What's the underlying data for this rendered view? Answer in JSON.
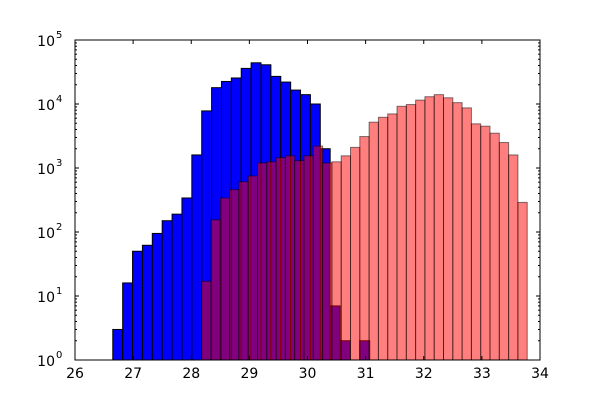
{
  "chart_data": {
    "type": "bar",
    "subtype": "overlapping-histogram",
    "title": "",
    "xlabel": "",
    "ylabel": "",
    "xlim": [
      26,
      34
    ],
    "ylim": [
      1,
      100000
    ],
    "yscale": "log",
    "grid": false,
    "legend": "none",
    "x_ticks": [
      26,
      27,
      28,
      29,
      30,
      31,
      32,
      33,
      34
    ],
    "x_tick_labels": [
      "26",
      "27",
      "28",
      "29",
      "30",
      "31",
      "32",
      "33",
      "34"
    ],
    "y_ticks": [
      {
        "value": 1,
        "base": "10",
        "exp": "0"
      },
      {
        "value": 10,
        "base": "10",
        "exp": "1"
      },
      {
        "value": 100,
        "base": "10",
        "exp": "2"
      },
      {
        "value": 1000,
        "base": "10",
        "exp": "3"
      },
      {
        "value": 10000,
        "base": "10",
        "exp": "4"
      },
      {
        "value": 100000,
        "base": "10",
        "exp": "5"
      }
    ],
    "series": [
      {
        "color": "#0000ff",
        "opacity": 1.0,
        "bins": [
          {
            "x0": 26.65,
            "x1": 26.82,
            "y": 3
          },
          {
            "x0": 26.82,
            "x1": 26.99,
            "y": 16
          },
          {
            "x0": 26.99,
            "x1": 27.16,
            "y": 50
          },
          {
            "x0": 27.16,
            "x1": 27.33,
            "y": 62
          },
          {
            "x0": 27.33,
            "x1": 27.5,
            "y": 95
          },
          {
            "x0": 27.5,
            "x1": 27.67,
            "y": 150
          },
          {
            "x0": 27.67,
            "x1": 27.84,
            "y": 190
          },
          {
            "x0": 27.84,
            "x1": 28.01,
            "y": 340
          },
          {
            "x0": 28.01,
            "x1": 28.18,
            "y": 1600
          },
          {
            "x0": 28.18,
            "x1": 28.35,
            "y": 7800
          },
          {
            "x0": 28.35,
            "x1": 28.52,
            "y": 18000
          },
          {
            "x0": 28.52,
            "x1": 28.69,
            "y": 22500
          },
          {
            "x0": 28.69,
            "x1": 28.86,
            "y": 25500
          },
          {
            "x0": 28.86,
            "x1": 29.03,
            "y": 36000
          },
          {
            "x0": 29.03,
            "x1": 29.2,
            "y": 44000
          },
          {
            "x0": 29.2,
            "x1": 29.37,
            "y": 41000
          },
          {
            "x0": 29.37,
            "x1": 29.54,
            "y": 27000
          },
          {
            "x0": 29.54,
            "x1": 29.71,
            "y": 22000
          },
          {
            "x0": 29.71,
            "x1": 29.88,
            "y": 16500
          },
          {
            "x0": 29.88,
            "x1": 30.05,
            "y": 14000
          },
          {
            "x0": 30.05,
            "x1": 30.22,
            "y": 10000
          },
          {
            "x0": 30.22,
            "x1": 30.39,
            "y": 2000
          },
          {
            "x0": 30.39,
            "x1": 30.56,
            "y": 7
          },
          {
            "x0": 30.56,
            "x1": 30.73,
            "y": 2
          },
          {
            "x0": 30.73,
            "x1": 30.9,
            "y": 1
          },
          {
            "x0": 30.9,
            "x1": 31.07,
            "y": 2
          }
        ]
      },
      {
        "color": "#ff0000",
        "opacity": 0.5,
        "bins": [
          {
            "x0": 28.18,
            "x1": 28.34,
            "y": 17
          },
          {
            "x0": 28.34,
            "x1": 28.5,
            "y": 155
          },
          {
            "x0": 28.5,
            "x1": 28.66,
            "y": 340
          },
          {
            "x0": 28.66,
            "x1": 28.82,
            "y": 460
          },
          {
            "x0": 28.82,
            "x1": 28.98,
            "y": 610
          },
          {
            "x0": 28.98,
            "x1": 29.14,
            "y": 750
          },
          {
            "x0": 29.14,
            "x1": 29.3,
            "y": 1200
          },
          {
            "x0": 29.3,
            "x1": 29.46,
            "y": 1250
          },
          {
            "x0": 29.46,
            "x1": 29.62,
            "y": 1450
          },
          {
            "x0": 29.62,
            "x1": 29.78,
            "y": 1550
          },
          {
            "x0": 29.78,
            "x1": 29.94,
            "y": 1300
          },
          {
            "x0": 29.94,
            "x1": 30.1,
            "y": 1550
          },
          {
            "x0": 30.1,
            "x1": 30.26,
            "y": 2200
          },
          {
            "x0": 30.26,
            "x1": 30.42,
            "y": 1200
          },
          {
            "x0": 30.42,
            "x1": 30.58,
            "y": 1250
          },
          {
            "x0": 30.58,
            "x1": 30.74,
            "y": 1550
          },
          {
            "x0": 30.74,
            "x1": 30.9,
            "y": 2100
          },
          {
            "x0": 30.9,
            "x1": 31.06,
            "y": 3100
          },
          {
            "x0": 31.06,
            "x1": 31.22,
            "y": 5200
          },
          {
            "x0": 31.22,
            "x1": 31.38,
            "y": 6200
          },
          {
            "x0": 31.38,
            "x1": 31.54,
            "y": 7000
          },
          {
            "x0": 31.54,
            "x1": 31.7,
            "y": 9200
          },
          {
            "x0": 31.7,
            "x1": 31.86,
            "y": 9800
          },
          {
            "x0": 31.86,
            "x1": 32.02,
            "y": 11500
          },
          {
            "x0": 32.02,
            "x1": 32.18,
            "y": 13000
          },
          {
            "x0": 32.18,
            "x1": 32.34,
            "y": 14000
          },
          {
            "x0": 32.34,
            "x1": 32.5,
            "y": 12500
          },
          {
            "x0": 32.5,
            "x1": 32.66,
            "y": 10500
          },
          {
            "x0": 32.66,
            "x1": 32.82,
            "y": 8700
          },
          {
            "x0": 32.82,
            "x1": 32.98,
            "y": 4900
          },
          {
            "x0": 32.98,
            "x1": 33.14,
            "y": 4500
          },
          {
            "x0": 33.14,
            "x1": 33.3,
            "y": 3500
          },
          {
            "x0": 33.3,
            "x1": 33.46,
            "y": 2500
          },
          {
            "x0": 33.46,
            "x1": 33.62,
            "y": 1600
          },
          {
            "x0": 33.62,
            "x1": 33.78,
            "y": 290
          }
        ]
      }
    ]
  }
}
